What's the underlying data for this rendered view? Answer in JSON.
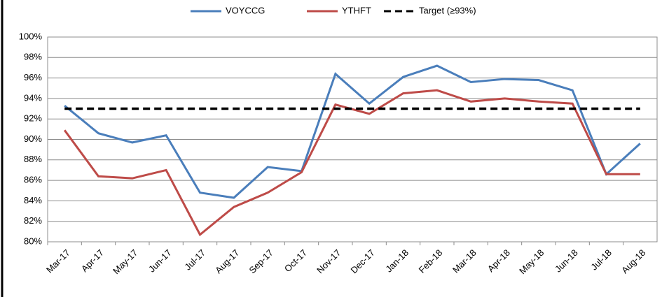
{
  "chart_data": {
    "type": "line",
    "categories": [
      "Mar-17",
      "Apr-17",
      "May-17",
      "Jun-17",
      "Jul-17",
      "Aug-17",
      "Sep-17",
      "Oct-17",
      "Nov-17",
      "Dec-17",
      "Jan-18",
      "Feb-18",
      "Mar-18",
      "Apr-18",
      "May-18",
      "Jun-18",
      "Jul-18",
      "Aug-18"
    ],
    "series": [
      {
        "name": "VOYCCG",
        "color": "#4a7ebb",
        "line_style": "solid",
        "values": [
          93.3,
          90.6,
          89.7,
          90.4,
          84.8,
          84.3,
          87.3,
          86.9,
          96.4,
          93.5,
          96.1,
          97.2,
          95.6,
          95.9,
          95.8,
          94.8,
          86.6,
          89.6
        ]
      },
      {
        "name": "YTHFT",
        "color": "#be4b48",
        "line_style": "solid",
        "values": [
          90.9,
          86.4,
          86.2,
          87.0,
          80.7,
          83.4,
          84.8,
          86.8,
          93.4,
          92.5,
          94.5,
          94.8,
          93.7,
          94.0,
          93.7,
          93.5,
          86.6,
          86.6
        ]
      },
      {
        "name": "Target (≥93%)",
        "color": "#000000",
        "line_style": "dashed",
        "values": [
          93,
          93,
          93,
          93,
          93,
          93,
          93,
          93,
          93,
          93,
          93,
          93,
          93,
          93,
          93,
          93,
          93,
          93
        ]
      }
    ],
    "ylim": [
      80,
      100
    ],
    "yticks": [
      {
        "value": 80,
        "label": "80%"
      },
      {
        "value": 82,
        "label": "82%"
      },
      {
        "value": 84,
        "label": "84%"
      },
      {
        "value": 86,
        "label": "86%"
      },
      {
        "value": 88,
        "label": "88%"
      },
      {
        "value": 90,
        "label": "90%"
      },
      {
        "value": 92,
        "label": "92%"
      },
      {
        "value": 94,
        "label": "94%"
      },
      {
        "value": 96,
        "label": "96%"
      },
      {
        "value": 98,
        "label": "98%"
      },
      {
        "value": 100,
        "label": "100%"
      }
    ],
    "grid": true,
    "legend": "top"
  }
}
